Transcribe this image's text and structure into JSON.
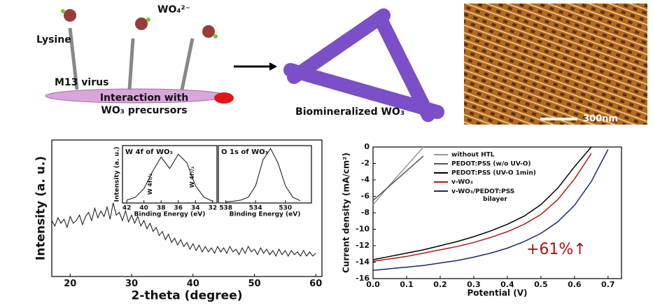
{
  "illustrations": {
    "lysine": "Lysine",
    "ion": "WO₄²⁻",
    "virus": "M13 virus",
    "interaction_line1": "Interaction with",
    "interaction_line2": "WO₃ precursors",
    "biomineralized": "Biomineralized WO₃",
    "scale_bar": "300nm"
  },
  "chart_data": [
    {
      "type": "line",
      "y_label": "Intensity (a. u.)",
      "x_label": "2-theta (degree)",
      "color": "#111111",
      "x": [
        17,
        17.5,
        18,
        18.5,
        19,
        19.5,
        20,
        20.5,
        21,
        21.5,
        22,
        22.5,
        23,
        23.5,
        24,
        24.5,
        25,
        25.5,
        26,
        26.5,
        27,
        27.5,
        28,
        28.5,
        29,
        29.5,
        30,
        30.5,
        31,
        31.5,
        32,
        32.5,
        33,
        33.5,
        34,
        34.5,
        35,
        35.5,
        36,
        36.5,
        37,
        37.5,
        38,
        38.5,
        39,
        39.5,
        40,
        40.5,
        41,
        41.5,
        42,
        42.5,
        43,
        43.5,
        44,
        44.5,
        45,
        45.5,
        46,
        46.5,
        47,
        47.5,
        48,
        48.5,
        49,
        49.5,
        50,
        50.5,
        51,
        51.5,
        52,
        52.5,
        53,
        53.5,
        54,
        54.5,
        55,
        55.5,
        56,
        56.5,
        57,
        57.5,
        58,
        58.5,
        59,
        59.5,
        60
      ],
      "values": [
        41,
        37,
        43,
        39,
        42,
        36,
        44,
        39,
        41,
        45,
        38,
        44,
        47,
        41,
        50,
        43,
        48,
        44,
        51,
        42,
        54,
        45,
        47,
        41,
        48,
        40,
        45,
        39,
        44,
        37,
        41,
        35,
        39,
        33,
        36,
        30,
        33,
        27,
        31,
        25,
        28,
        23,
        27,
        22,
        25,
        20,
        24,
        19,
        23,
        18,
        22,
        18,
        21,
        17,
        22,
        18,
        21,
        17,
        22,
        18,
        20,
        16,
        21,
        17,
        22,
        18,
        20,
        16,
        21,
        17,
        20,
        16,
        19,
        15,
        20,
        16,
        19,
        15,
        19,
        16,
        18,
        15,
        19,
        15,
        18,
        15,
        17
      ],
      "xlim": [
        17,
        61
      ],
      "xticks": [
        20,
        30,
        40,
        50,
        60
      ],
      "ylim": [
        0,
        100
      ]
    },
    {
      "type": "line",
      "title": "W 4f of WO₃",
      "y_label": "Intensity (a. u.)",
      "x_label": "Binding Energy (eV)",
      "color": "#111111",
      "annotations": [
        "W 4f₅/₂",
        "W 4f₇/₂"
      ],
      "x": [
        42,
        41,
        40,
        39,
        38,
        37,
        36,
        35,
        34,
        33,
        32
      ],
      "values": [
        5,
        10,
        25,
        55,
        80,
        60,
        85,
        70,
        30,
        10,
        3
      ],
      "xlim": [
        42.5,
        31.5
      ],
      "xticks": [
        42,
        40,
        38,
        36,
        34,
        32
      ],
      "ylim": [
        0,
        100
      ]
    },
    {
      "type": "line",
      "title": "O 1s of WO₃",
      "x_label": "Binding Energy (eV)",
      "color": "#111111",
      "x": [
        538,
        537,
        536,
        535,
        534,
        533,
        532,
        531,
        530,
        529,
        528
      ],
      "values": [
        2,
        3,
        5,
        10,
        30,
        75,
        95,
        70,
        30,
        10,
        4
      ],
      "xlim": [
        539,
        526.5
      ],
      "xticks": [
        538,
        534,
        530
      ],
      "ylim": [
        0,
        100
      ]
    },
    {
      "type": "line",
      "y_label": "Current density (mA/cm²)",
      "x_label": "Potential (V)",
      "annotation": "+61%↑",
      "x": [
        0,
        0.05,
        0.1,
        0.15,
        0.2,
        0.25,
        0.3,
        0.35,
        0.4,
        0.45,
        0.5,
        0.55,
        0.6,
        0.65,
        0.7
      ],
      "series": [
        {
          "name": "without HTL",
          "color": "#999999",
          "values": [
            -7,
            -4.6,
            -2.3,
            0,
            null,
            null,
            null,
            null,
            null,
            null,
            null,
            null,
            null,
            null,
            null
          ]
        },
        {
          "name": "PEDOT:PSS (w/o UV-O)",
          "color": "#555555",
          "values": [
            -6.5,
            -4.7,
            -2.9,
            -1.1,
            null,
            null,
            null,
            null,
            null,
            null,
            null,
            null,
            null,
            null,
            null
          ]
        },
        {
          "name": "PEDOT:PSS (UV-O 1min)",
          "color": "#000000",
          "values": [
            -13.7,
            -13.3,
            -12.9,
            -12.5,
            -12.0,
            -11.5,
            -10.9,
            -10.2,
            -9.4,
            -8.4,
            -7.0,
            -5.0,
            -2.4,
            0,
            null
          ]
        },
        {
          "name": "v-WO₃",
          "color": "#b01818",
          "values": [
            -13.9,
            -13.6,
            -13.3,
            -12.9,
            -12.5,
            -12.1,
            -11.6,
            -11.0,
            -10.3,
            -9.4,
            -8.2,
            -6.4,
            -3.9,
            -0.8,
            null
          ]
        },
        {
          "name": "v-WO₃/PEDOT:PSS bilayer",
          "color": "#1a2a6c",
          "values": [
            -15,
            -14.8,
            -14.6,
            -14.4,
            -14.1,
            -13.8,
            -13.4,
            -12.9,
            -12.3,
            -11.5,
            -10.5,
            -9.1,
            -7.1,
            -4.2,
            -0.3
          ]
        }
      ],
      "xlim": [
        0,
        0.74
      ],
      "xticks": [
        {
          "value": 0,
          "label": "0.0"
        },
        0.1,
        0.2,
        0.3,
        0.4,
        0.5,
        0.6,
        0.7
      ],
      "ylim": [
        -16,
        0
      ],
      "yticks": [
        -16,
        -14,
        -12,
        -10,
        -8,
        -6,
        -4,
        -2,
        0
      ]
    }
  ]
}
